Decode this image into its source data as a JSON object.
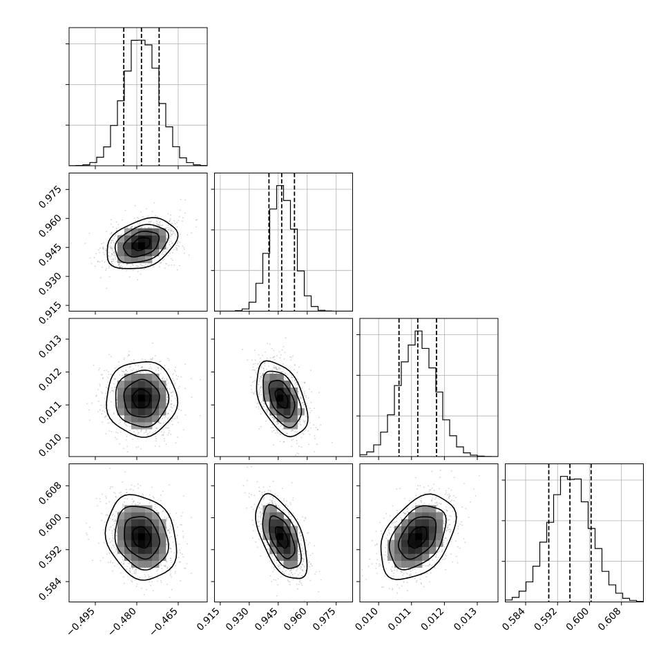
{
  "chart_data": {
    "type": "corner",
    "params": [
      {
        "range": [
          -0.5045,
          -0.4545
        ],
        "ticks": [
          -0.495,
          -0.48,
          -0.465
        ],
        "tick_labels": [
          "−0.495",
          "−0.480",
          "−0.465"
        ],
        "mean": -0.4783,
        "sigma": 0.0064,
        "quantiles": [
          -0.4847,
          -0.4783,
          -0.4719
        ]
      },
      {
        "range": [
          0.912,
          0.9835
        ],
        "ticks": [
          0.915,
          0.93,
          0.945,
          0.96,
          0.975
        ],
        "tick_labels": [
          "0.915",
          "0.930",
          "0.945",
          "0.960",
          "0.975"
        ],
        "mean": 0.9468,
        "sigma": 0.0066,
        "quantiles": [
          0.9402,
          0.9468,
          0.9534
        ]
      },
      {
        "range": [
          0.00943,
          0.01363
        ],
        "ticks": [
          0.01,
          0.011,
          0.012,
          0.013
        ],
        "tick_labels": [
          "0.010",
          "0.011",
          "0.012",
          "0.013"
        ],
        "mean": 0.01119,
        "sigma": 0.00057,
        "quantiles": [
          0.01062,
          0.01119,
          0.01176
        ]
      },
      {
        "range": [
          0.5789,
          0.6135
        ],
        "ticks": [
          0.584,
          0.592,
          0.6,
          0.608
        ],
        "tick_labels": [
          "0.584",
          "0.592",
          "0.600",
          "0.608"
        ],
        "mean": 0.5951,
        "sigma": 0.0053,
        "quantiles": [
          0.5898,
          0.5951,
          0.6004
        ]
      }
    ],
    "correlations": [
      [
        1,
        2,
        0.33
      ],
      [
        1,
        3,
        0.0
      ],
      [
        1,
        4,
        -0.18
      ],
      [
        2,
        3,
        -0.45
      ],
      [
        2,
        4,
        -0.55
      ],
      [
        3,
        4,
        0.4
      ]
    ],
    "histogram_bins": 20,
    "contour_levels_sigma": [
      0.5,
      1.0,
      1.5,
      2.0
    ],
    "grid": true,
    "scatter_points": true,
    "title": "",
    "xlabel": "",
    "ylabel": ""
  }
}
